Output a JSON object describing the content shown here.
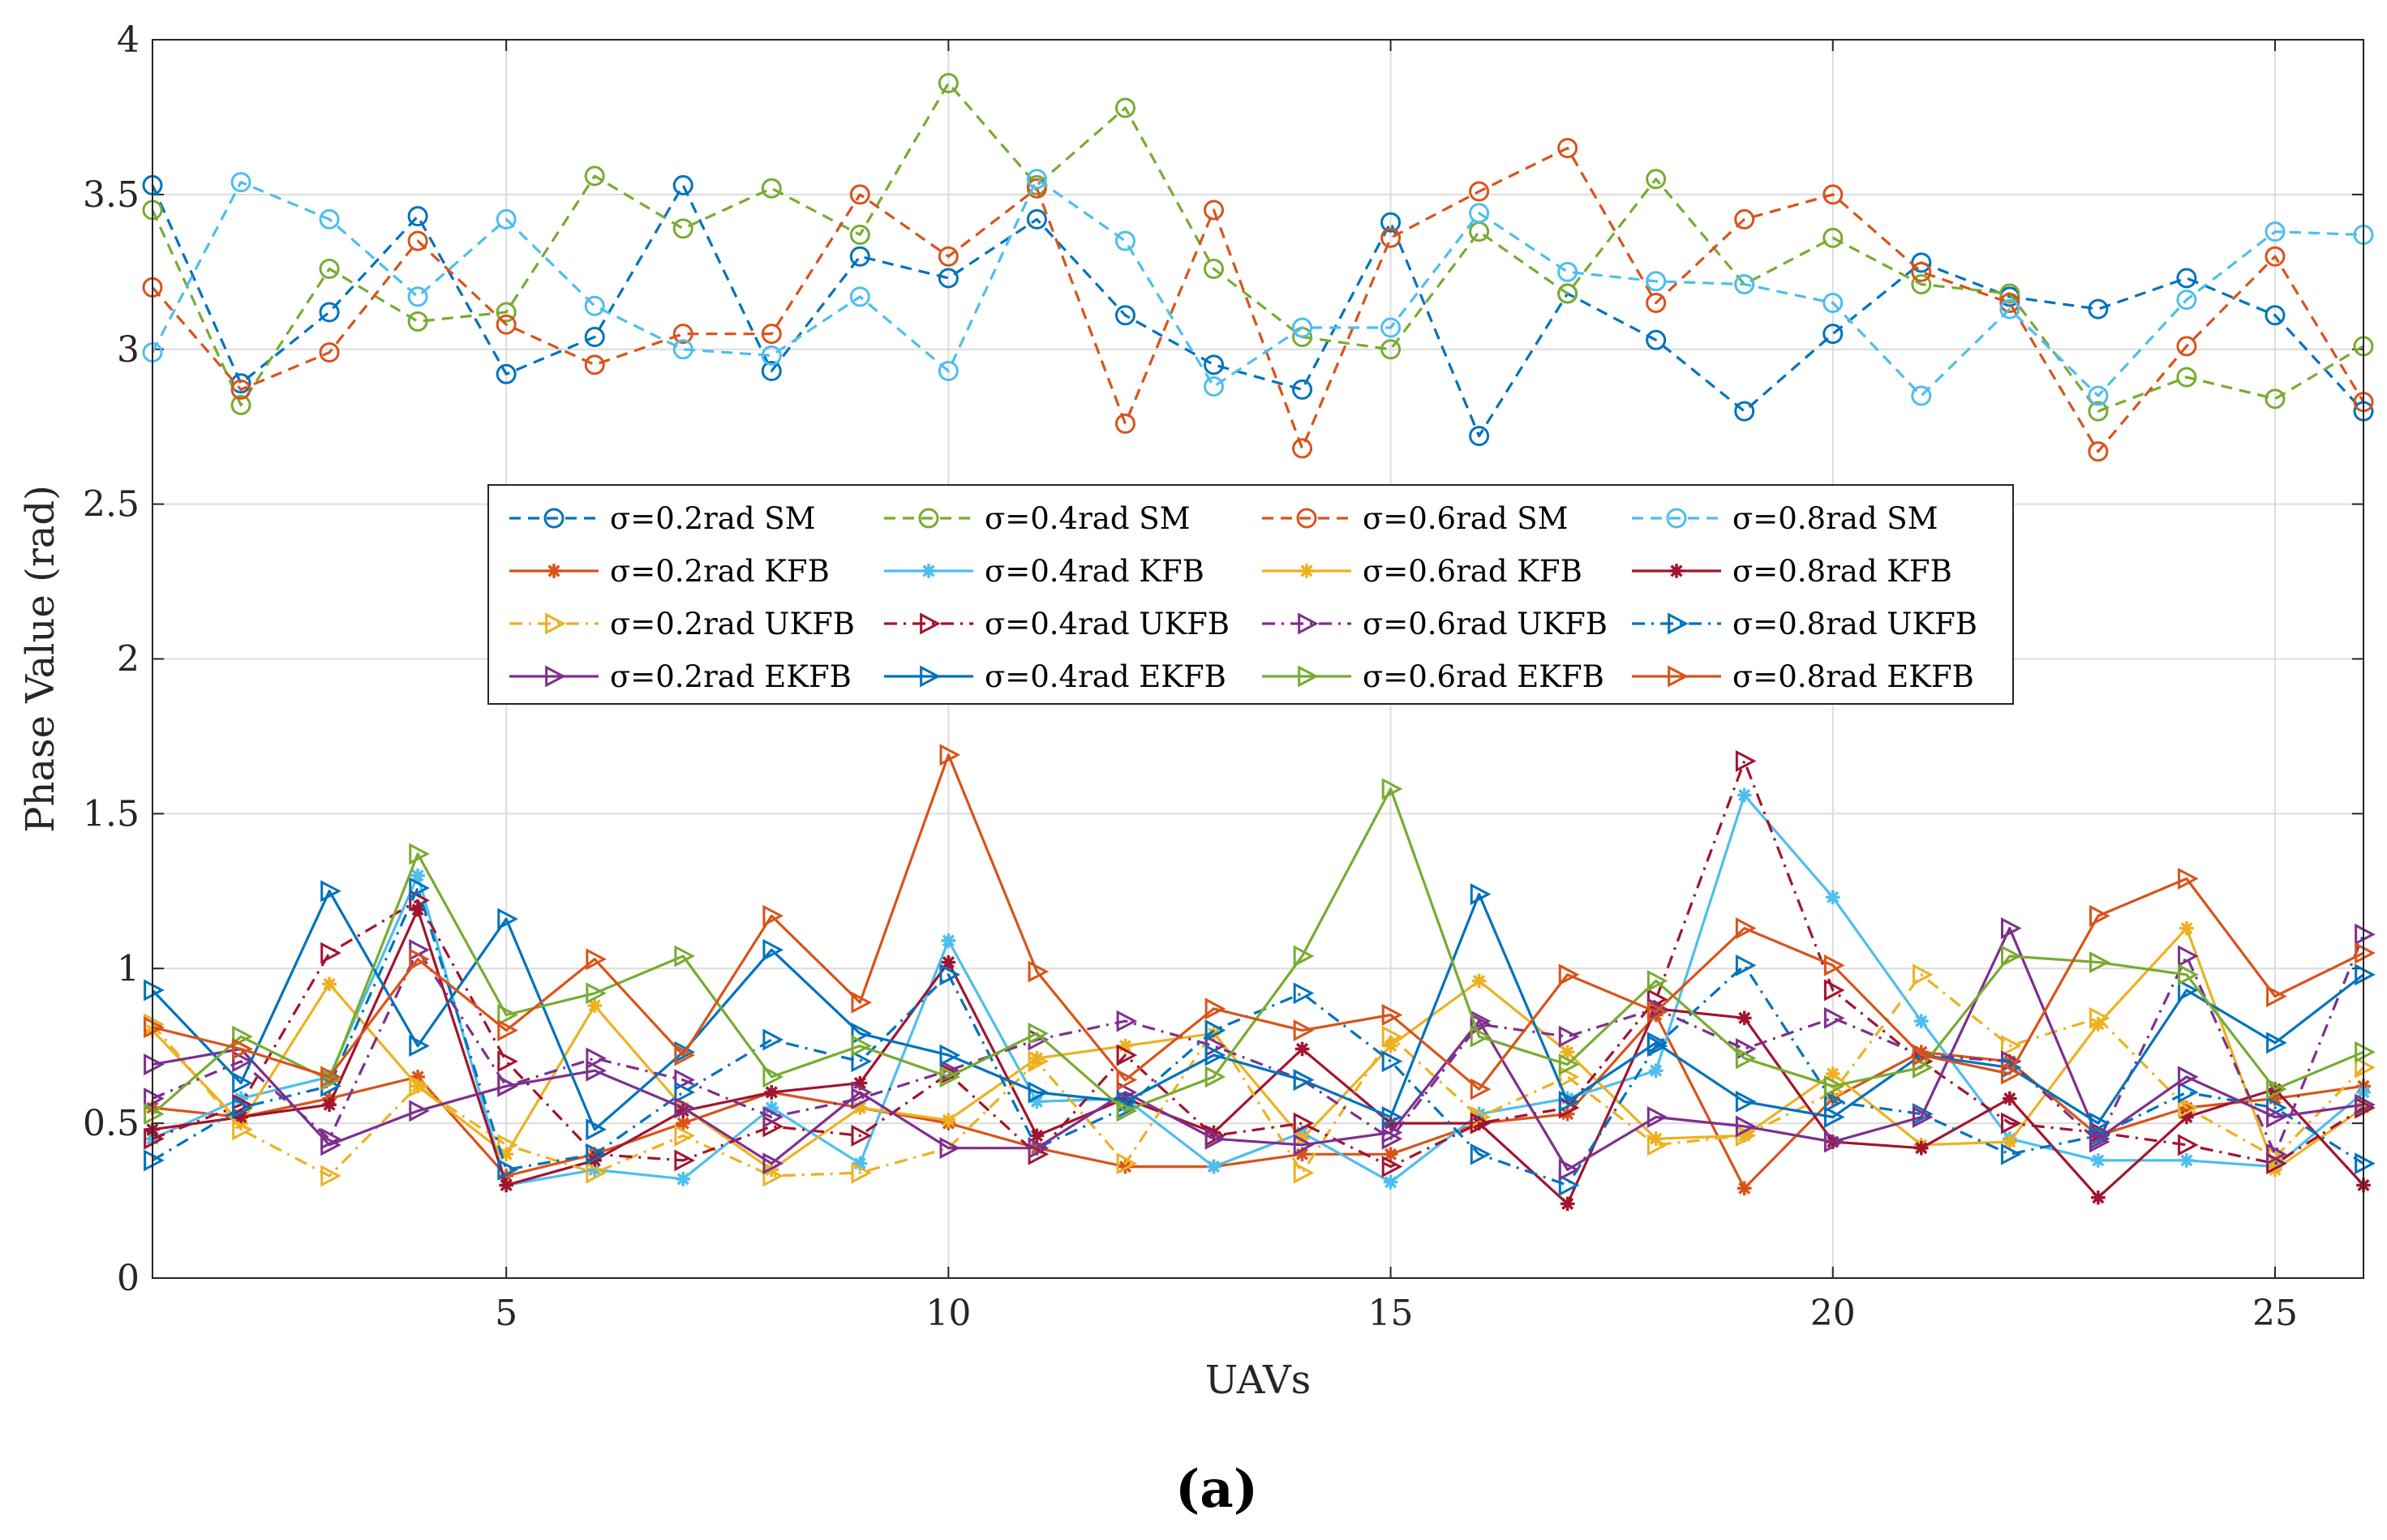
{
  "chart_data": {
    "type": "line",
    "title": "",
    "caption": "(a)",
    "xlabel": "UAVs",
    "ylabel": "Phase Value (rad)",
    "xlim": [
      1,
      26
    ],
    "ylim": [
      0,
      4
    ],
    "xticks": [
      5,
      10,
      15,
      20,
      25
    ],
    "yticks": [
      0,
      0.5,
      1,
      1.5,
      2,
      2.5,
      3,
      3.5,
      4
    ],
    "ytick_labels": [
      "0",
      "0.5",
      "1",
      "1.5",
      "2",
      "2.5",
      "3",
      "3.5",
      "4"
    ],
    "grid": true,
    "legend_position": "center",
    "x": [
      1,
      2,
      3,
      4,
      5,
      6,
      7,
      8,
      9,
      10,
      11,
      12,
      13,
      14,
      15,
      16,
      17,
      18,
      19,
      20,
      21,
      22,
      23,
      24,
      25,
      26
    ],
    "series": [
      {
        "name": "σ=0.2rad SM",
        "color": "#0072BD",
        "dash": "dashed",
        "marker": "circle",
        "values": [
          3.53,
          2.89,
          3.12,
          3.43,
          2.92,
          3.04,
          3.53,
          2.93,
          3.3,
          3.23,
          3.42,
          3.11,
          2.95,
          2.87,
          3.41,
          2.72,
          3.18,
          3.03,
          2.8,
          3.05,
          3.28,
          3.17,
          3.13,
          3.23,
          3.11,
          2.8
        ]
      },
      {
        "name": "σ=0.4rad SM",
        "color": "#77AC30",
        "dash": "dashed",
        "marker": "circle",
        "values": [
          3.45,
          2.82,
          3.26,
          3.09,
          3.12,
          3.56,
          3.39,
          3.52,
          3.37,
          3.86,
          3.53,
          3.78,
          3.26,
          3.04,
          3.0,
          3.38,
          3.18,
          3.55,
          3.21,
          3.36,
          3.21,
          3.18,
          2.8,
          2.91,
          2.84,
          3.01
        ]
      },
      {
        "name": "σ=0.6rad SM",
        "color": "#D95319",
        "dash": "dashed",
        "marker": "circle",
        "values": [
          3.2,
          2.87,
          2.99,
          3.35,
          3.08,
          2.95,
          3.05,
          3.05,
          3.5,
          3.3,
          3.52,
          2.76,
          3.45,
          2.68,
          3.36,
          3.51,
          3.65,
          3.15,
          3.42,
          3.5,
          3.25,
          3.15,
          2.67,
          3.01,
          3.3,
          2.83
        ]
      },
      {
        "name": "σ=0.8rad SM",
        "color": "#4DBEEE",
        "dash": "dashed",
        "marker": "circle",
        "values": [
          2.99,
          3.54,
          3.42,
          3.17,
          3.42,
          3.14,
          3.0,
          2.98,
          3.17,
          2.93,
          3.55,
          3.35,
          2.88,
          3.07,
          3.07,
          3.44,
          3.25,
          3.22,
          3.21,
          3.15,
          2.85,
          3.13,
          2.85,
          3.16,
          3.38,
          3.37
        ]
      },
      {
        "name": "σ=0.2rad KFB",
        "color": "#D95319",
        "dash": "solid",
        "marker": "asterisk",
        "values": [
          0.55,
          0.52,
          0.58,
          0.65,
          0.33,
          0.4,
          0.5,
          0.6,
          0.55,
          0.5,
          0.42,
          0.36,
          0.36,
          0.4,
          0.4,
          0.5,
          0.53,
          0.85,
          0.29,
          0.58,
          0.73,
          0.7,
          0.46,
          0.55,
          0.58,
          0.62
        ]
      },
      {
        "name": "σ=0.4rad KFB",
        "color": "#4DBEEE",
        "dash": "solid",
        "marker": "asterisk",
        "values": [
          0.45,
          0.58,
          0.65,
          1.3,
          0.3,
          0.35,
          0.32,
          0.55,
          0.37,
          1.09,
          0.57,
          0.58,
          0.36,
          0.47,
          0.31,
          0.53,
          0.58,
          0.67,
          1.56,
          1.23,
          0.83,
          0.45,
          0.38,
          0.38,
          0.36,
          0.6
        ]
      },
      {
        "name": "σ=0.6rad KFB",
        "color": "#EDB120",
        "dash": "solid",
        "marker": "asterisk",
        "values": [
          0.8,
          0.5,
          0.95,
          0.62,
          0.4,
          0.88,
          0.55,
          0.35,
          0.55,
          0.51,
          0.71,
          0.75,
          0.79,
          0.45,
          0.75,
          0.96,
          0.73,
          0.45,
          0.46,
          0.66,
          0.43,
          0.44,
          0.82,
          1.13,
          0.35,
          0.55
        ]
      },
      {
        "name": "σ=0.8rad KFB",
        "color": "#A2142F",
        "dash": "solid",
        "marker": "asterisk",
        "values": [
          0.48,
          0.52,
          0.56,
          1.19,
          0.3,
          0.38,
          0.54,
          0.6,
          0.63,
          1.02,
          0.46,
          0.58,
          0.47,
          0.74,
          0.5,
          0.5,
          0.24,
          0.87,
          0.84,
          0.44,
          0.42,
          0.58,
          0.26,
          0.52,
          0.61,
          0.3
        ]
      },
      {
        "name": "σ=0.2rad UKFB",
        "color": "#EDB120",
        "dash": "dashdot",
        "marker": "triangle-right",
        "values": [
          0.82,
          0.48,
          0.33,
          0.62,
          0.43,
          0.34,
          0.46,
          0.33,
          0.34,
          0.42,
          0.7,
          0.37,
          0.8,
          0.34,
          0.78,
          0.52,
          0.65,
          0.43,
          0.46,
          0.6,
          0.98,
          0.75,
          0.84,
          0.55,
          0.39,
          0.68
        ]
      },
      {
        "name": "σ=0.4rad UKFB",
        "color": "#A2142F",
        "dash": "dashdot",
        "marker": "triangle-right",
        "values": [
          0.45,
          0.56,
          1.05,
          1.22,
          0.7,
          0.4,
          0.38,
          0.49,
          0.46,
          0.66,
          0.4,
          0.72,
          0.46,
          0.5,
          0.36,
          0.5,
          0.55,
          0.9,
          1.67,
          0.93,
          0.7,
          0.5,
          0.47,
          0.43,
          0.37,
          0.55
        ]
      },
      {
        "name": "σ=0.6rad UKFB",
        "color": "#7E2F8E",
        "dash": "dashdot",
        "marker": "triangle-right",
        "values": [
          0.58,
          0.7,
          0.45,
          1.06,
          0.62,
          0.71,
          0.64,
          0.52,
          0.58,
          0.67,
          0.77,
          0.83,
          0.75,
          0.64,
          0.45,
          0.82,
          0.78,
          0.87,
          0.74,
          0.84,
          0.72,
          0.7,
          0.44,
          1.04,
          0.4,
          1.11
        ]
      },
      {
        "name": "σ=0.8rad UKFB",
        "color": "#0072BD",
        "dash": "dashdot",
        "marker": "triangle-right",
        "values": [
          0.38,
          0.55,
          0.62,
          1.26,
          0.35,
          0.4,
          0.6,
          0.77,
          0.7,
          0.98,
          0.42,
          0.55,
          0.8,
          0.92,
          0.7,
          0.4,
          0.3,
          0.75,
          1.01,
          0.57,
          0.53,
          0.4,
          0.46,
          0.6,
          0.55,
          0.37
        ]
      },
      {
        "name": "σ=0.2rad EKFB",
        "color": "#7E2F8E",
        "dash": "solid",
        "marker": "triangle-right",
        "values": [
          0.69,
          0.74,
          0.43,
          0.54,
          0.62,
          0.67,
          0.55,
          0.37,
          0.6,
          0.42,
          0.42,
          0.6,
          0.45,
          0.43,
          0.47,
          0.83,
          0.35,
          0.52,
          0.49,
          0.44,
          0.52,
          1.13,
          0.45,
          0.65,
          0.52,
          0.56
        ]
      },
      {
        "name": "σ=0.4rad EKFB",
        "color": "#0072BD",
        "dash": "solid",
        "marker": "triangle-right",
        "values": [
          0.93,
          0.63,
          1.25,
          0.75,
          1.16,
          0.48,
          0.73,
          1.06,
          0.79,
          0.72,
          0.6,
          0.57,
          0.72,
          0.64,
          0.52,
          1.24,
          0.57,
          0.76,
          0.57,
          0.52,
          0.72,
          0.68,
          0.5,
          0.93,
          0.76,
          0.98
        ]
      },
      {
        "name": "σ=0.6rad EKFB",
        "color": "#77AC30",
        "dash": "solid",
        "marker": "triangle-right",
        "values": [
          0.53,
          0.78,
          0.64,
          1.37,
          0.85,
          0.92,
          1.04,
          0.65,
          0.75,
          0.65,
          0.79,
          0.54,
          0.65,
          1.04,
          1.58,
          0.78,
          0.69,
          0.96,
          0.71,
          0.62,
          0.68,
          1.04,
          1.02,
          0.98,
          0.61,
          0.73
        ]
      },
      {
        "name": "σ=0.8rad EKFB",
        "color": "#D95319",
        "dash": "solid",
        "marker": "triangle-right",
        "values": [
          0.81,
          0.74,
          0.65,
          1.03,
          0.8,
          1.03,
          0.72,
          1.17,
          0.89,
          1.69,
          0.99,
          0.64,
          0.87,
          0.8,
          0.85,
          0.61,
          0.98,
          0.86,
          1.13,
          1.01,
          0.72,
          0.66,
          1.17,
          1.29,
          0.91,
          1.05
        ]
      }
    ]
  }
}
